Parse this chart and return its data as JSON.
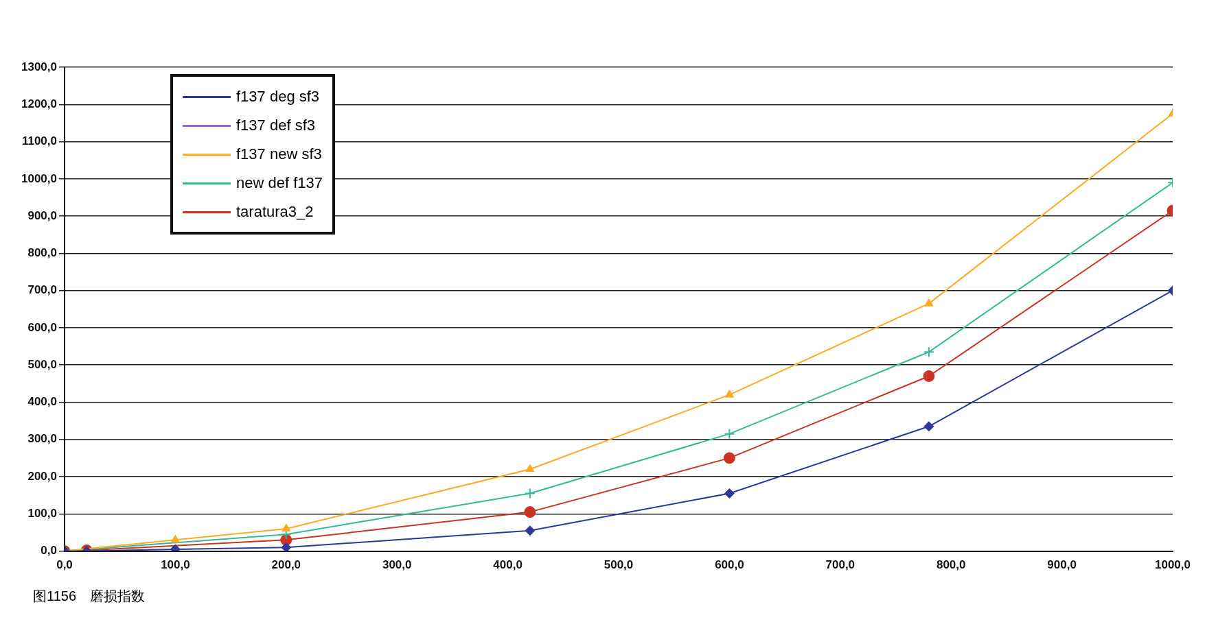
{
  "chart_data": {
    "type": "line",
    "x": [
      0,
      20,
      100,
      200,
      420,
      600,
      780,
      1000
    ],
    "xlim": [
      0,
      1000
    ],
    "xticks": [
      {
        "value": 0,
        "label": "0,0"
      },
      {
        "value": 100,
        "label": "100,0"
      },
      {
        "value": 200,
        "label": "200,0"
      },
      {
        "value": 300,
        "label": "300,0"
      },
      {
        "value": 400,
        "label": "400,0"
      },
      {
        "value": 500,
        "label": "500,0"
      },
      {
        "value": 600,
        "label": "600,0"
      },
      {
        "value": 700,
        "label": "700,0"
      },
      {
        "value": 800,
        "label": "800,0"
      },
      {
        "value": 900,
        "label": "900,0"
      },
      {
        "value": 1000,
        "label": "1000,0"
      }
    ],
    "ylim": [
      0,
      1300
    ],
    "yticks": [
      {
        "value": 0,
        "label": "0,0"
      },
      {
        "value": 100,
        "label": "100,0"
      },
      {
        "value": 200,
        "label": "200,0"
      },
      {
        "value": 300,
        "label": "300,0"
      },
      {
        "value": 400,
        "label": "400,0"
      },
      {
        "value": 500,
        "label": "500,0"
      },
      {
        "value": 600,
        "label": "600,0"
      },
      {
        "value": 700,
        "label": "700,0"
      },
      {
        "value": 800,
        "label": "800,0"
      },
      {
        "value": 900,
        "label": "900,0"
      },
      {
        "value": 1000,
        "label": "1000,0"
      },
      {
        "value": 1100,
        "label": "1100,0"
      },
      {
        "value": 1200,
        "label": "1200,0"
      },
      {
        "value": 1300,
        "label": "1300,0"
      }
    ],
    "grid": "y",
    "legend": "top left",
    "series": [
      {
        "name": "f137 deg sf3",
        "color": "#2b3a9a",
        "marker": "diamond",
        "values": [
          0,
          0,
          5,
          10,
          55,
          155,
          335,
          700
        ]
      },
      {
        "name": "f137 def sf3",
        "color": "#9966cc",
        "marker": "square",
        "values": [
          null,
          null,
          null,
          null,
          null,
          null,
          null,
          null
        ]
      },
      {
        "name": "f137 new sf3",
        "color": "#ffaa22",
        "marker": "triangle",
        "values": [
          0,
          null,
          30,
          60,
          220,
          420,
          665,
          1175
        ]
      },
      {
        "name": "new def f137",
        "color": "#33bb99",
        "marker": "cross",
        "values": [
          0,
          null,
          null,
          45,
          155,
          315,
          535,
          990
        ]
      },
      {
        "name": "taratura3_2",
        "color": "#cc3322",
        "marker": "circle",
        "values": [
          0,
          2,
          null,
          30,
          105,
          250,
          470,
          915
        ]
      }
    ],
    "annotations": [
      "图1156　磨损指数"
    ]
  }
}
